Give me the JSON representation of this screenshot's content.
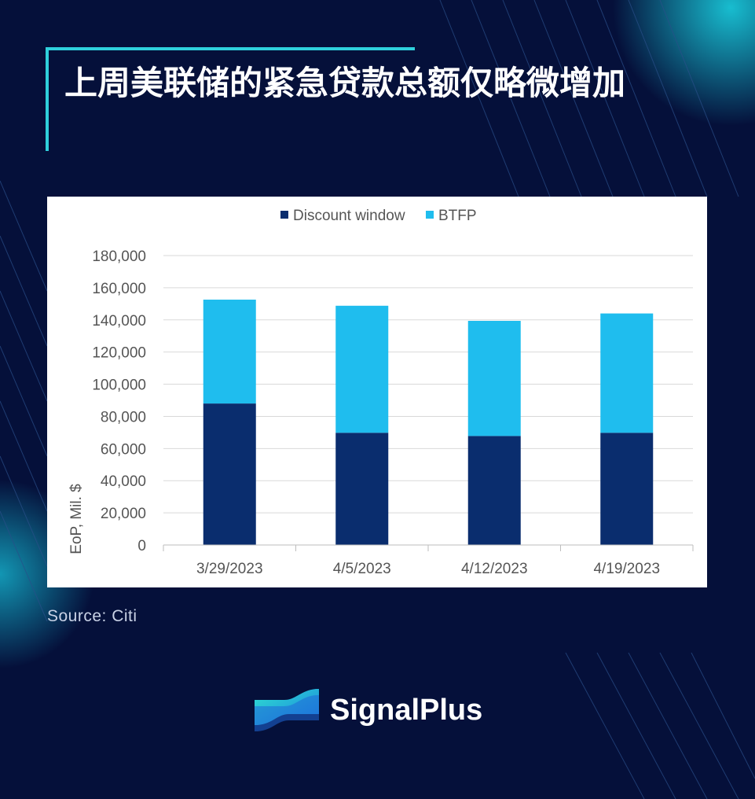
{
  "page": {
    "title": "上周美联储的紧急贷款总额仅略微增加",
    "source": "Source: Citi",
    "brand_name": "SignalPlus"
  },
  "colors": {
    "background": "#05103a",
    "accent": "#2fd0dc",
    "discount_window": "#0a2d6e",
    "btfp": "#1fbdee"
  },
  "chart_data": {
    "type": "bar",
    "stacked": true,
    "categories": [
      "3/29/2023",
      "4/5/2023",
      "4/12/2023",
      "4/19/2023"
    ],
    "series": [
      {
        "name": "Discount window",
        "values": [
          88000,
          69800,
          67800,
          69800
        ]
      },
      {
        "name": "BTFP",
        "values": [
          64600,
          79000,
          71600,
          74200
        ]
      }
    ],
    "ylabel": "EoP, Mil. $",
    "ylim": [
      0,
      180000
    ],
    "yticks": [
      "0",
      "20,000",
      "40,000",
      "60,000",
      "80,000",
      "100,000",
      "120,000",
      "140,000",
      "160,000",
      "180,000"
    ],
    "legend": "top-center",
    "grid": true
  }
}
